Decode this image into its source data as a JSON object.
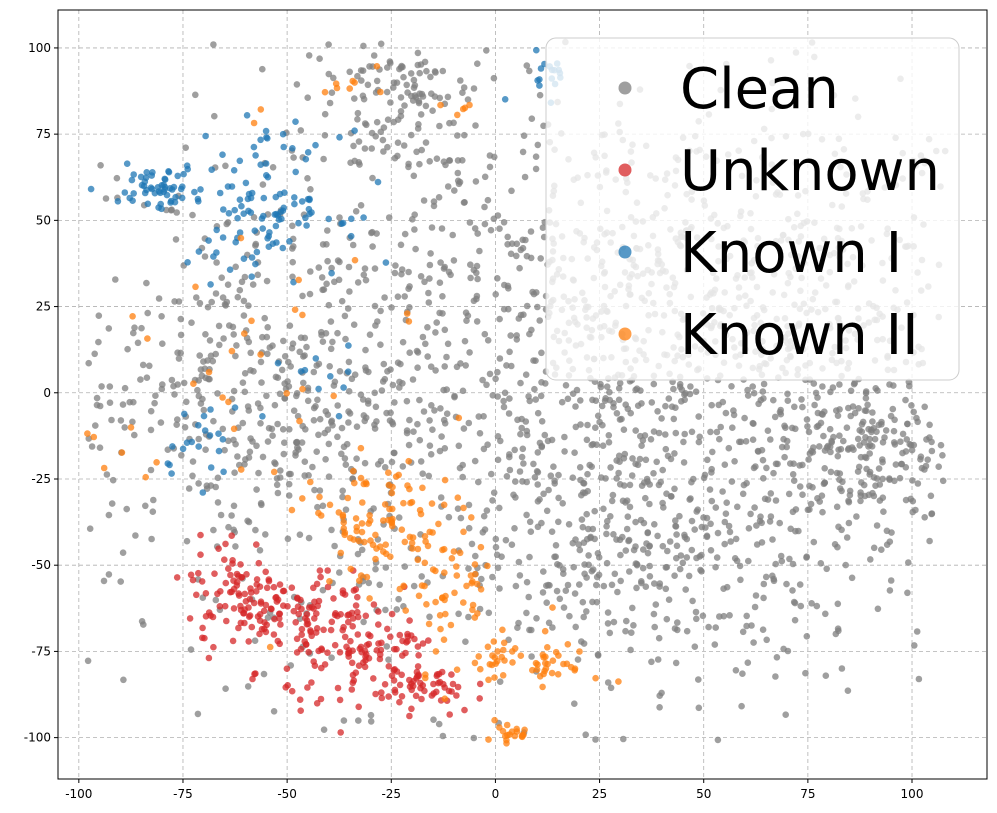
{
  "chart_data": {
    "type": "scatter",
    "title": "",
    "xlabel": "",
    "ylabel": "",
    "xlim": [
      -105,
      118
    ],
    "ylim": [
      -112,
      111
    ],
    "xticks": [
      -100,
      -75,
      -50,
      -25,
      0,
      25,
      50,
      75,
      100
    ],
    "yticks": [
      -100,
      -75,
      -50,
      -25,
      0,
      25,
      50,
      75,
      100
    ],
    "grid": true,
    "legend_position": "top-right",
    "series": [
      {
        "name": "Clean",
        "color": "#7f7f7f",
        "clusters": [
          {
            "cx": 20,
            "cy": 0,
            "sx": 55,
            "sy": 45,
            "n": 1500
          },
          {
            "cx": -60,
            "cy": 0,
            "sx": 20,
            "sy": 25,
            "n": 320
          },
          {
            "cx": 40,
            "cy": -45,
            "sx": 20,
            "sy": 15,
            "n": 200
          },
          {
            "cx": 88,
            "cy": -18,
            "sx": 12,
            "sy": 12,
            "n": 180
          },
          {
            "cx": -25,
            "cy": 90,
            "sx": 10,
            "sy": 5,
            "n": 70
          },
          {
            "cx": -28,
            "cy": 72,
            "sx": 12,
            "sy": 5,
            "n": 45
          },
          {
            "cx": 60,
            "cy": 30,
            "sx": 25,
            "sy": 30,
            "n": 300
          }
        ]
      },
      {
        "name": "Unknown",
        "color": "#d62728",
        "clusters": [
          {
            "cx": -62,
            "cy": -58,
            "sx": 6,
            "sy": 8,
            "n": 80
          },
          {
            "cx": -47,
            "cy": -65,
            "sx": 8,
            "sy": 7,
            "n": 90
          },
          {
            "cx": -30,
            "cy": -78,
            "sx": 10,
            "sy": 8,
            "n": 120
          },
          {
            "cx": -15,
            "cy": -86,
            "sx": 5,
            "sy": 4,
            "n": 40
          }
        ]
      },
      {
        "name": "Known I",
        "color": "#1f77b4",
        "clusters": [
          {
            "cx": -82,
            "cy": 60,
            "sx": 6,
            "sy": 3,
            "n": 55
          },
          {
            "cx": -55,
            "cy": 55,
            "sx": 9,
            "sy": 10,
            "n": 110
          },
          {
            "cx": -70,
            "cy": -15,
            "sx": 6,
            "sy": 6,
            "n": 22
          },
          {
            "cx": -40,
            "cy": 5,
            "sx": 5,
            "sy": 5,
            "n": 10
          },
          {
            "cx": 12,
            "cy": 93,
            "sx": 4,
            "sy": 4,
            "n": 18
          }
        ]
      },
      {
        "name": "Known II",
        "color": "#ff7f0e",
        "clusters": [
          {
            "cx": -28,
            "cy": -38,
            "sx": 9,
            "sy": 9,
            "n": 90
          },
          {
            "cx": -12,
            "cy": -55,
            "sx": 6,
            "sy": 8,
            "n": 50
          },
          {
            "cx": 8,
            "cy": -78,
            "sx": 9,
            "sy": 4,
            "n": 60
          },
          {
            "cx": 3,
            "cy": -99,
            "sx": 3,
            "sy": 2,
            "n": 20
          },
          {
            "cx": -60,
            "cy": 0,
            "sx": 20,
            "sy": 30,
            "n": 40
          },
          {
            "cx": -35,
            "cy": 88,
            "sx": 6,
            "sy": 3,
            "n": 8
          },
          {
            "cx": -10,
            "cy": 83,
            "sx": 2,
            "sy": 1,
            "n": 5
          }
        ]
      }
    ]
  }
}
